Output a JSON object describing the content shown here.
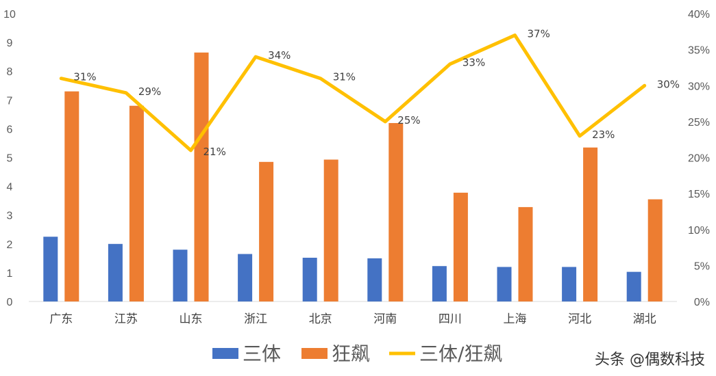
{
  "chart_data": {
    "type": "bar",
    "categories": [
      "广东",
      "江苏",
      "山东",
      "浙江",
      "北京",
      "河南",
      "四川",
      "上海",
      "河北",
      "湖北"
    ],
    "series": [
      {
        "name": "三体",
        "kind": "bar",
        "axis": "left",
        "color": "#4472C4",
        "values": [
          2.25,
          2.0,
          1.8,
          1.65,
          1.52,
          1.5,
          1.23,
          1.2,
          1.2,
          1.03
        ]
      },
      {
        "name": "狂飙",
        "kind": "bar",
        "axis": "left",
        "color": "#ED7D31",
        "values": [
          7.3,
          6.8,
          8.65,
          4.85,
          4.93,
          6.2,
          3.78,
          3.28,
          5.35,
          3.55
        ]
      },
      {
        "name": "三体/狂飙",
        "kind": "line",
        "axis": "right",
        "color": "#FFC000",
        "values": [
          0.31,
          0.29,
          0.21,
          0.34,
          0.31,
          0.25,
          0.33,
          0.37,
          0.23,
          0.3
        ],
        "labels": [
          "31%",
          "29%",
          "21%",
          "34%",
          "31%",
          "25%",
          "33%",
          "37%",
          "23%",
          "30%"
        ]
      }
    ],
    "y_left": {
      "min": 0,
      "max": 10,
      "ticks": [
        "0",
        "1",
        "2",
        "3",
        "4",
        "5",
        "6",
        "7",
        "8",
        "9",
        "10"
      ]
    },
    "y_right": {
      "min": 0,
      "max": 0.4,
      "ticks": [
        "0%",
        "5%",
        "10%",
        "15%",
        "20%",
        "25%",
        "30%",
        "35%",
        "40%"
      ]
    },
    "grid": false,
    "legend": "bottom"
  },
  "watermark": "头条 @偶数科技"
}
